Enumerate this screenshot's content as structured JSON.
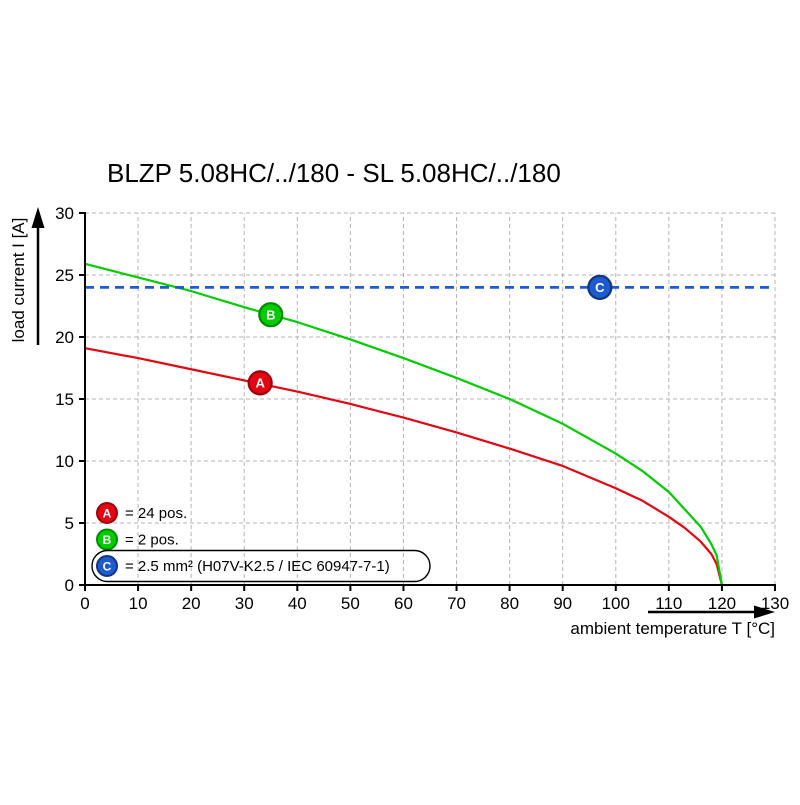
{
  "page": {
    "background": "#ffffff"
  },
  "chart_data": {
    "type": "line",
    "title": "BLZP 5.08HC/../180 - SL 5.08HC/../180",
    "xlabel": "ambient temperature T [°C]",
    "ylabel": "load current I [A]",
    "xlim": [
      0,
      130
    ],
    "ylim": [
      0,
      30
    ],
    "xticks": [
      0,
      10,
      20,
      30,
      40,
      50,
      60,
      70,
      80,
      90,
      100,
      110,
      120,
      130
    ],
    "yticks": [
      0,
      5,
      10,
      15,
      20,
      25,
      30
    ],
    "grid": true,
    "grid_color": "#b3b3b3",
    "axis_color": "#000000",
    "legend_position": "bottom-left-inside",
    "series": [
      {
        "name": "A",
        "label": "= 24 pos.",
        "color": "#e30613",
        "border": "#9b040d",
        "line_style": "solid",
        "marker_at": [
          33,
          16.3
        ],
        "points": [
          [
            0,
            19.1
          ],
          [
            10,
            18.3
          ],
          [
            20,
            17.4
          ],
          [
            30,
            16.5
          ],
          [
            40,
            15.6
          ],
          [
            50,
            14.6
          ],
          [
            60,
            13.5
          ],
          [
            70,
            12.3
          ],
          [
            80,
            11.0
          ],
          [
            90,
            9.6
          ],
          [
            100,
            7.8
          ],
          [
            105,
            6.8
          ],
          [
            110,
            5.5
          ],
          [
            113,
            4.6
          ],
          [
            116,
            3.5
          ],
          [
            118,
            2.5
          ],
          [
            119,
            1.7
          ],
          [
            120,
            0
          ]
        ]
      },
      {
        "name": "B",
        "label": "= 2 pos.",
        "color": "#00cc00",
        "border": "#008a00",
        "line_style": "solid",
        "marker_at": [
          35,
          21.8
        ],
        "points": [
          [
            0,
            25.9
          ],
          [
            10,
            24.8
          ],
          [
            20,
            23.7
          ],
          [
            30,
            22.4
          ],
          [
            40,
            21.2
          ],
          [
            50,
            19.8
          ],
          [
            60,
            18.3
          ],
          [
            70,
            16.7
          ],
          [
            80,
            15.0
          ],
          [
            90,
            13.0
          ],
          [
            100,
            10.6
          ],
          [
            105,
            9.2
          ],
          [
            110,
            7.5
          ],
          [
            113,
            6.1
          ],
          [
            116,
            4.7
          ],
          [
            118,
            3.3
          ],
          [
            119,
            2.4
          ],
          [
            120,
            0
          ]
        ]
      },
      {
        "name": "C",
        "label": "= 2.5 mm² (H07V-K2.5 / IEC 60947-7-1)",
        "color": "#1e5bd0",
        "border": "#12367e",
        "line_style": "dashed",
        "marker_at": [
          97,
          24
        ],
        "points": [
          [
            0,
            24
          ],
          [
            130,
            24
          ]
        ]
      }
    ]
  }
}
